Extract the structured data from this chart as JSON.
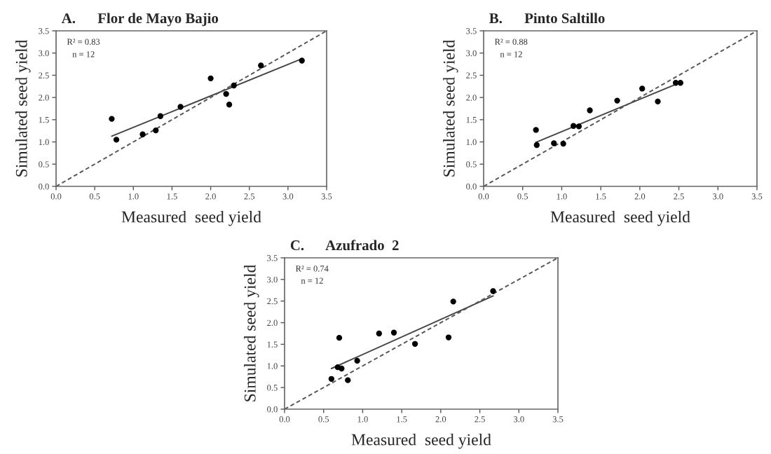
{
  "chart_data": [
    {
      "type": "scatter",
      "title": "A.      Flor de Mayo Bajio",
      "xlabel": "Measured  seed yield",
      "ylabel": "Simulated seed yield",
      "annotations": [
        "R² = 0.83",
        "n = 12"
      ],
      "xlim": [
        0,
        3.5
      ],
      "ylim": [
        0,
        3.5
      ],
      "xticks": [
        {
          "value": 0,
          "label": "0.0"
        },
        {
          "value": 0.5,
          "label": "0.5"
        },
        {
          "value": 1,
          "label": "1.0"
        },
        {
          "value": 1.5,
          "label": "1.5"
        },
        {
          "value": 2,
          "label": "2.0"
        },
        {
          "value": 2.5,
          "label": "2.5"
        },
        {
          "value": 3,
          "label": "3.0"
        },
        {
          "value": 3.5,
          "label": "3.5"
        }
      ],
      "yticks": [
        {
          "value": 0,
          "label": "0.0"
        },
        {
          "value": 0.5,
          "label": "0.5"
        },
        {
          "value": 1,
          "label": "1.0"
        },
        {
          "value": 1.5,
          "label": "1.5"
        },
        {
          "value": 2,
          "label": "2.0"
        },
        {
          "value": 2.5,
          "label": "2.5"
        },
        {
          "value": 3,
          "label": "3.0"
        },
        {
          "value": 3.5,
          "label": "3.5"
        }
      ],
      "grid": false,
      "series": [
        {
          "marker": "circle",
          "color": "#000000",
          "x": [
            0.72,
            0.78,
            1.12,
            1.29,
            1.35,
            1.61,
            2.0,
            2.2,
            2.24,
            2.3,
            2.65,
            3.18
          ],
          "values": [
            1.52,
            1.05,
            1.17,
            1.26,
            1.58,
            1.79,
            2.43,
            2.08,
            1.84,
            2.27,
            2.72,
            2.83
          ]
        },
        {
          "type": "line",
          "color": "#444444",
          "line_style": "solid",
          "x": [
            0.72,
            3.18
          ],
          "values": [
            1.13,
            2.87
          ]
        },
        {
          "type": "line",
          "color": "#555555",
          "line_style": "dashed",
          "x": [
            0,
            3.5
          ],
          "values": [
            0,
            3.5
          ]
        }
      ]
    },
    {
      "type": "scatter",
      "title": "B.      Pinto Saltillo",
      "xlabel": "Measured  seed yield",
      "ylabel": "Simulated seed yield",
      "annotations": [
        "R² = 0.88",
        "n = 12"
      ],
      "xlim": [
        0,
        3.5
      ],
      "ylim": [
        0,
        3.5
      ],
      "xticks": [
        {
          "value": 0,
          "label": "0.0"
        },
        {
          "value": 0.5,
          "label": "0.5"
        },
        {
          "value": 1,
          "label": "1.0"
        },
        {
          "value": 1.5,
          "label": "1.5"
        },
        {
          "value": 2,
          "label": "2.0"
        },
        {
          "value": 2.5,
          "label": "2.5"
        },
        {
          "value": 3,
          "label": "3.0"
        },
        {
          "value": 3.5,
          "label": "3.5"
        }
      ],
      "yticks": [
        {
          "value": 0,
          "label": "0.0"
        },
        {
          "value": 0.5,
          "label": "0.5"
        },
        {
          "value": 1,
          "label": "1.0"
        },
        {
          "value": 1.5,
          "label": "1.5"
        },
        {
          "value": 2,
          "label": "2.0"
        },
        {
          "value": 2.5,
          "label": "2.5"
        },
        {
          "value": 3,
          "label": "3.0"
        },
        {
          "value": 3.5,
          "label": "3.5"
        }
      ],
      "grid": false,
      "series": [
        {
          "marker": "circle",
          "color": "#000000",
          "x": [
            0.67,
            0.68,
            0.9,
            1.02,
            1.15,
            1.22,
            1.36,
            1.71,
            2.03,
            2.23,
            2.46,
            2.52
          ],
          "values": [
            1.27,
            0.93,
            0.97,
            0.96,
            1.36,
            1.35,
            1.71,
            1.93,
            2.2,
            1.91,
            2.33,
            2.33
          ]
        },
        {
          "type": "line",
          "color": "#444444",
          "line_style": "solid",
          "x": [
            0.67,
            2.52
          ],
          "values": [
            0.99,
            2.34
          ]
        },
        {
          "type": "line",
          "color": "#555555",
          "line_style": "dashed",
          "x": [
            0,
            3.5
          ],
          "values": [
            0,
            3.5
          ]
        }
      ]
    },
    {
      "type": "scatter",
      "title": "C.      Azufrado  2",
      "xlabel": "Measured  seed yield",
      "ylabel": "Simulated seed yield",
      "annotations": [
        "R² = 0.74",
        "n = 12"
      ],
      "xlim": [
        0,
        3.5
      ],
      "ylim": [
        0,
        3.5
      ],
      "xticks": [
        {
          "value": 0,
          "label": "0.0"
        },
        {
          "value": 0.5,
          "label": "0.5"
        },
        {
          "value": 1,
          "label": "1.0"
        },
        {
          "value": 1.5,
          "label": "1.5"
        },
        {
          "value": 2,
          "label": "2.0"
        },
        {
          "value": 2.5,
          "label": "2.5"
        },
        {
          "value": 3,
          "label": "3.0"
        },
        {
          "value": 3.5,
          "label": "3.5"
        }
      ],
      "yticks": [
        {
          "value": 0,
          "label": "0.0"
        },
        {
          "value": 0.5,
          "label": "0.5"
        },
        {
          "value": 1,
          "label": "1.0"
        },
        {
          "value": 1.5,
          "label": "1.5"
        },
        {
          "value": 2,
          "label": "2.0"
        },
        {
          "value": 2.5,
          "label": "2.5"
        },
        {
          "value": 3,
          "label": "3.0"
        },
        {
          "value": 3.5,
          "label": "3.5"
        }
      ],
      "grid": false,
      "series": [
        {
          "marker": "circle",
          "color": "#000000",
          "x": [
            0.6,
            0.68,
            0.7,
            0.73,
            0.81,
            0.93,
            1.21,
            1.4,
            1.67,
            2.1,
            2.16,
            2.67
          ],
          "values": [
            0.7,
            0.97,
            1.65,
            0.94,
            0.67,
            1.12,
            1.75,
            1.77,
            1.51,
            1.66,
            2.49,
            2.73
          ]
        },
        {
          "type": "line",
          "color": "#444444",
          "line_style": "solid",
          "x": [
            0.6,
            2.67
          ],
          "values": [
            0.94,
            2.62
          ]
        },
        {
          "type": "line",
          "color": "#555555",
          "line_style": "dashed",
          "x": [
            0,
            3.5
          ],
          "values": [
            0,
            3.5
          ]
        }
      ]
    }
  ]
}
